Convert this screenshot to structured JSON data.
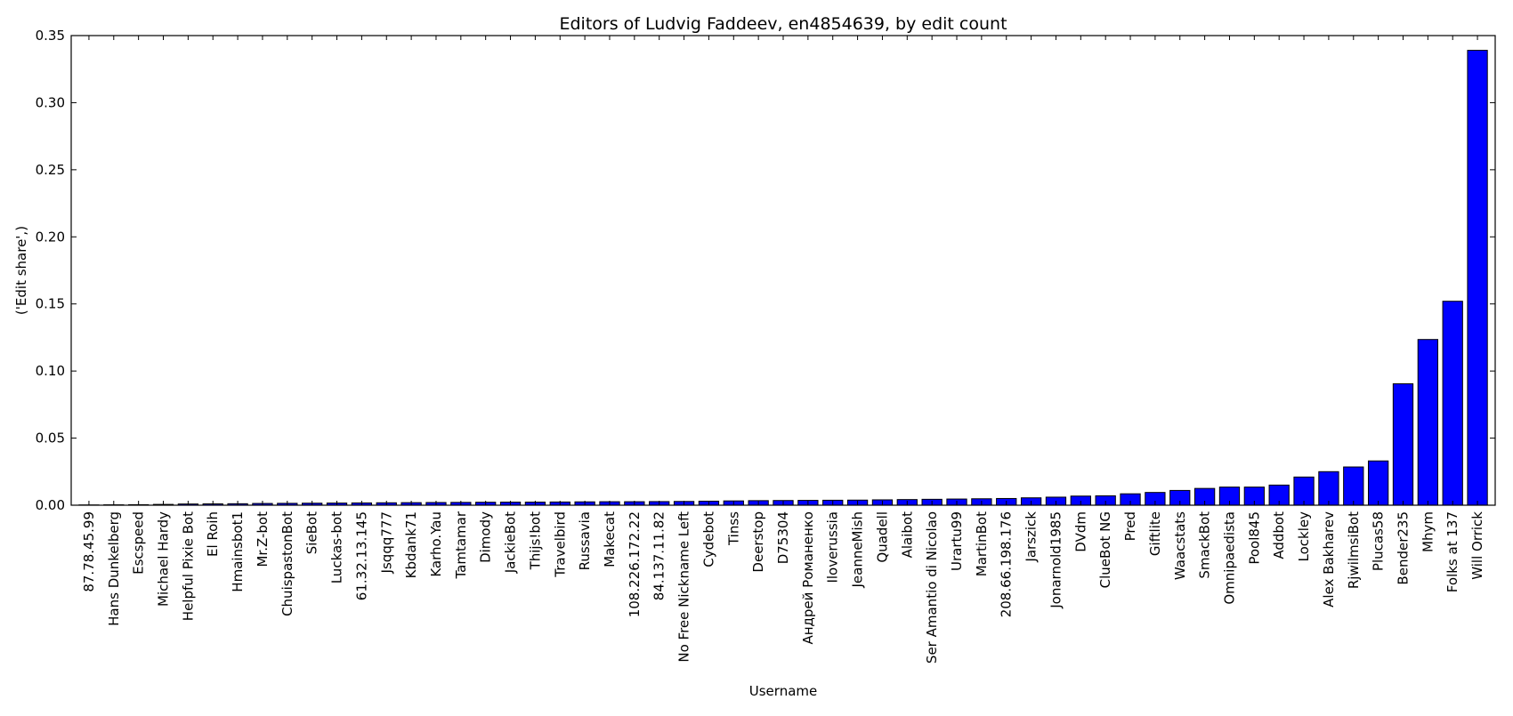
{
  "chart_data": {
    "type": "bar",
    "title": "Editors of Ludvig Faddeev, en4854639, by edit count",
    "xlabel": "Username",
    "ylabel": "('Edit share',)",
    "ylim": [
      0,
      0.35
    ],
    "yticks": [
      "0.00",
      "0.05",
      "0.10",
      "0.15",
      "0.20",
      "0.25",
      "0.30",
      "0.35"
    ],
    "grid": false,
    "bar_color": "#0000ff",
    "categories": [
      "87.78.45.99",
      "Hans Dunkelberg",
      "Escspeed",
      "Michael Hardy",
      "Helpful Pixie Bot",
      "El Roih",
      "Hmainsbot1",
      "Mr.Z-bot",
      "ChuispastonBot",
      "SieBot",
      "Luckas-bot",
      "61.32.13.145",
      "Jsqqq777",
      "Kbdank71",
      "Karho.Yau",
      "Tamtamar",
      "Dimody",
      "JackieBot",
      "Thijs!bot",
      "Travelbird",
      "Russavia",
      "Makecat",
      "108.226.172.22",
      "84.137.11.82",
      "No Free Nickname Left",
      "Cydebot",
      "Tinss",
      "Deerstop",
      "D75304",
      "Андрей Романенко",
      "Iloverussia",
      "JeanneMish",
      "Quadell",
      "Alaibot",
      "Ser Amantio di Nicolao",
      "Urartu99",
      "MartinBot",
      "208.66.198.176",
      "Jarszick",
      "Jonarnold1985",
      "DVdm",
      "ClueBot NG",
      "Pred",
      "Giftlite",
      "Waacstats",
      "SmackBot",
      "Omnipaedista",
      "Pool845",
      "Addbot",
      "Lockley",
      "Alex Bakharev",
      "RjwilmsiBot",
      "Plucas58",
      "Bender235",
      "Mhym",
      "Folks at 137",
      "Will Orrick"
    ],
    "values": [
      0.0002,
      0.0003,
      0.0004,
      0.0006,
      0.0009,
      0.001,
      0.0011,
      0.0013,
      0.0014,
      0.0015,
      0.0016,
      0.0017,
      0.0018,
      0.0019,
      0.002,
      0.0021,
      0.0022,
      0.0023,
      0.0023,
      0.0024,
      0.0025,
      0.0026,
      0.0026,
      0.0027,
      0.0028,
      0.003,
      0.0032,
      0.0034,
      0.0035,
      0.0036,
      0.0037,
      0.0038,
      0.004,
      0.0042,
      0.0044,
      0.0046,
      0.0048,
      0.005,
      0.0055,
      0.006,
      0.0068,
      0.007,
      0.0085,
      0.0095,
      0.011,
      0.0125,
      0.0135,
      0.0135,
      0.015,
      0.021,
      0.025,
      0.0285,
      0.033,
      0.0905,
      0.1235,
      0.152,
      0.339
    ]
  }
}
